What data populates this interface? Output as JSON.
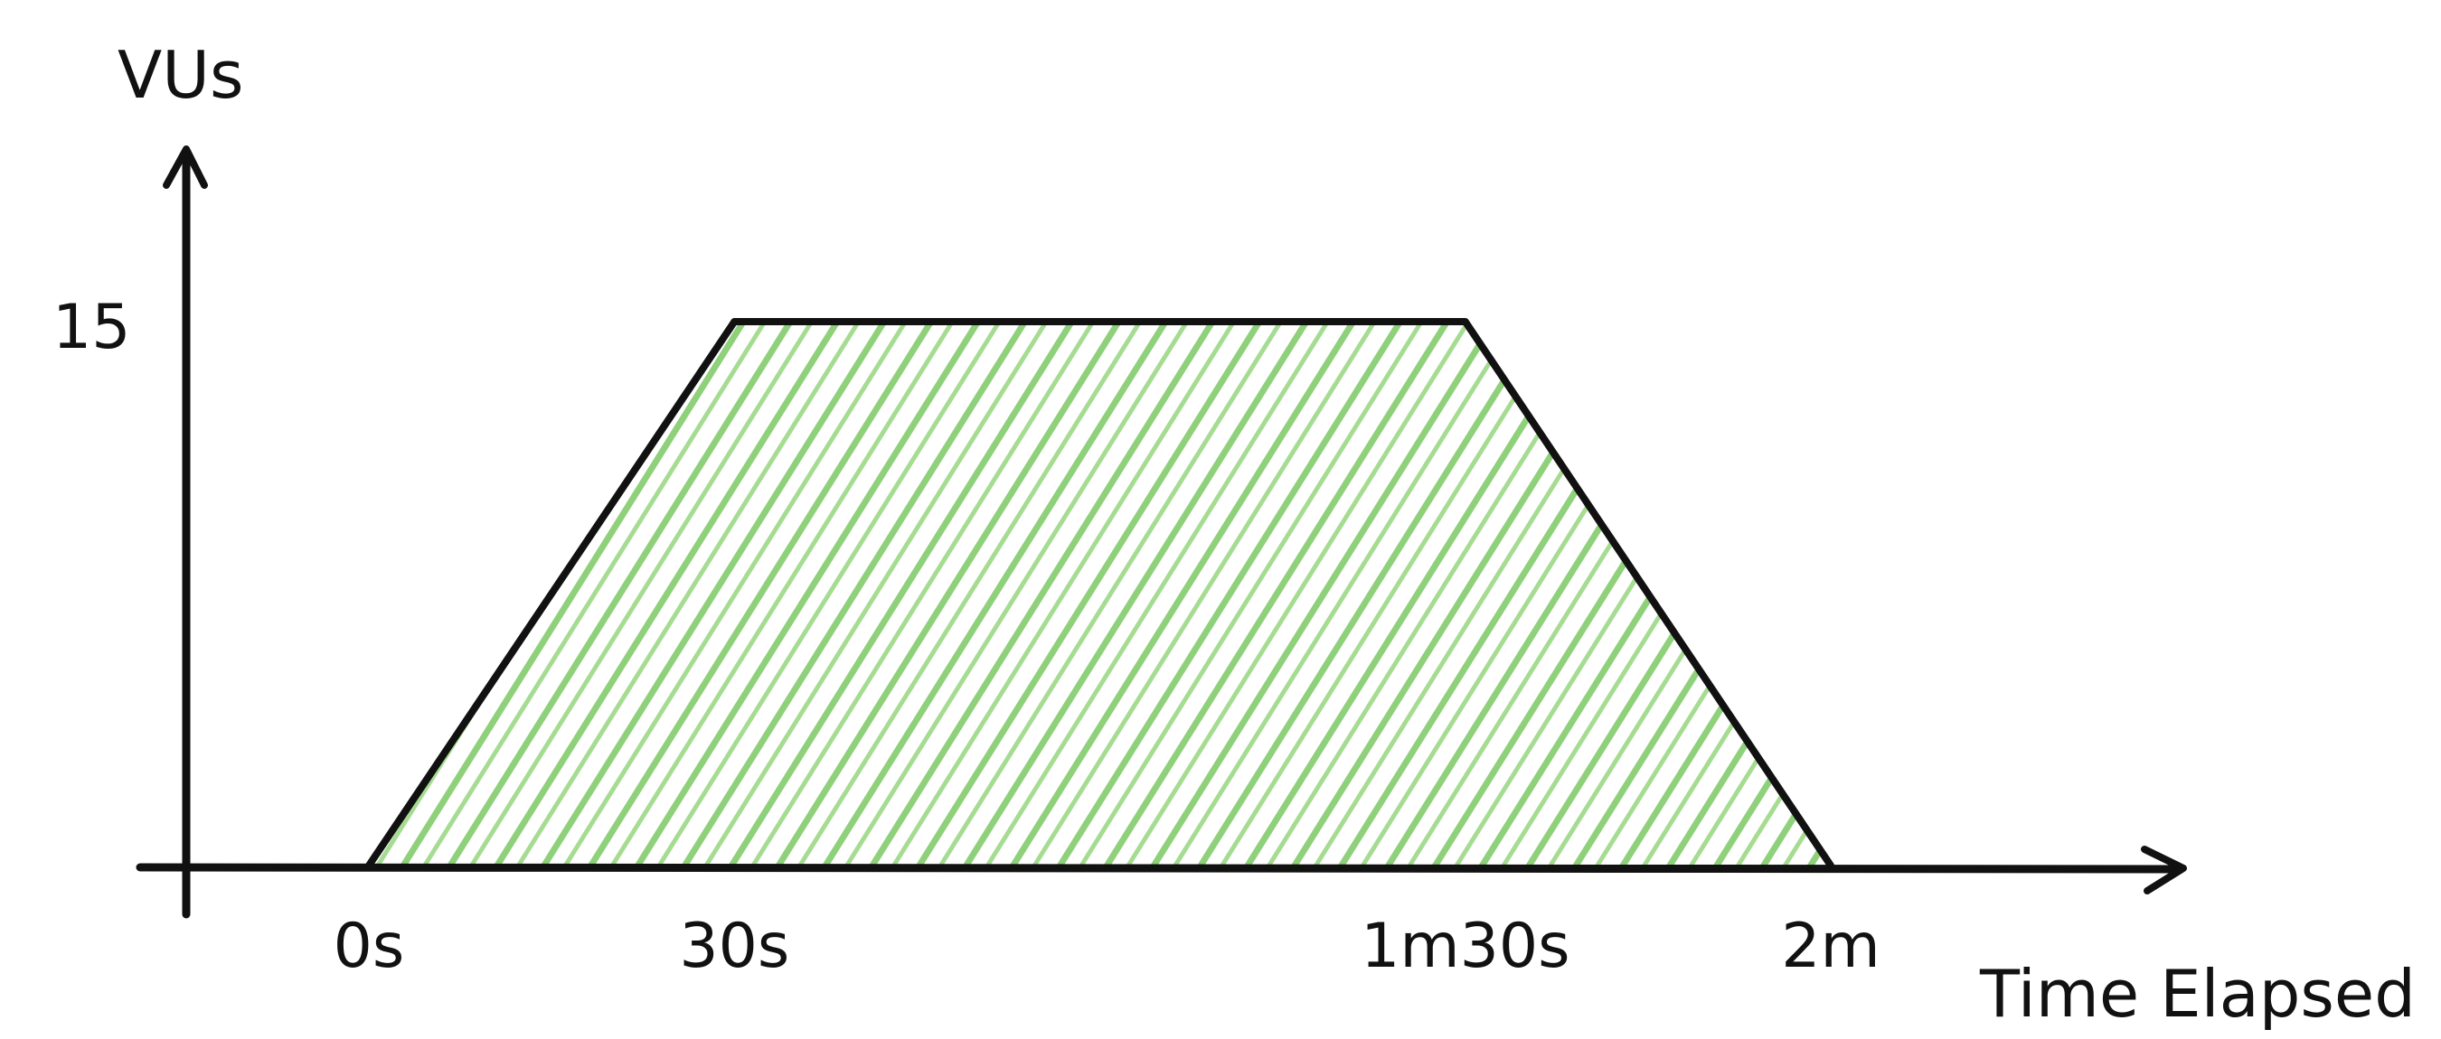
{
  "chart_data": {
    "type": "area",
    "title": "",
    "xlabel": "Time Elapsed",
    "ylabel": "VUs",
    "x_tick_labels": [
      "0s",
      "30s",
      "1m30s",
      "2m"
    ],
    "x_seconds": [
      0,
      30,
      90,
      120
    ],
    "y_tick_labels": [
      "15"
    ],
    "y_ticks": [
      15
    ],
    "series": [
      {
        "x": [
          0,
          30,
          90,
          120
        ],
        "values": [
          0,
          15,
          15,
          0
        ]
      }
    ],
    "xlim": [
      0,
      120
    ],
    "ylim": [
      0,
      15
    ],
    "grid": false,
    "legend": "none",
    "fill_color": "#8fd07a",
    "line_color": "#111111"
  }
}
